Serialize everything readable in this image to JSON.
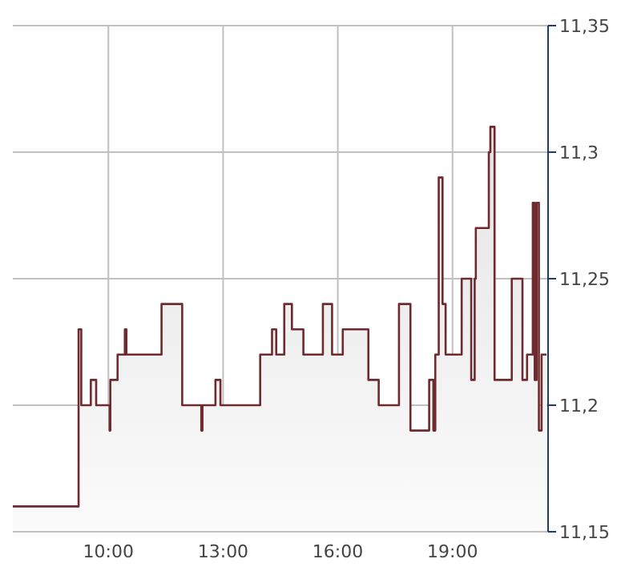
{
  "chart_data": {
    "type": "area",
    "color": "#6e2a2e",
    "x": [
      7.5,
      9.22,
      9.22,
      9.29,
      9.29,
      9.54,
      9.54,
      9.68,
      9.68,
      10.03,
      10.03,
      10.05,
      10.05,
      10.24,
      10.24,
      10.43,
      10.43,
      10.47,
      10.47,
      11.39,
      11.39,
      11.93,
      11.93,
      12.43,
      12.43,
      12.46,
      12.46,
      12.8,
      12.8,
      12.93,
      12.93,
      13.97,
      13.97,
      14.28,
      14.28,
      14.39,
      14.39,
      14.6,
      14.6,
      14.8,
      14.8,
      15.1,
      15.1,
      15.61,
      15.61,
      15.85,
      15.85,
      16.13,
      16.13,
      16.8,
      16.8,
      17.07,
      17.07,
      17.6,
      17.6,
      17.9,
      17.9,
      18.39,
      18.39,
      18.5,
      18.5,
      18.55,
      18.55,
      18.64,
      18.64,
      18.74,
      18.74,
      18.82,
      18.82,
      19.24,
      19.24,
      19.49,
      19.49,
      19.58,
      19.58,
      19.61,
      19.61,
      19.95,
      19.95,
      19.99,
      19.99,
      20.1,
      20.1,
      20.55,
      20.55,
      20.83,
      20.83,
      20.95,
      20.95,
      21.1,
      21.1,
      21.15,
      21.15,
      21.2,
      21.2,
      21.26,
      21.26,
      21.33,
      21.33,
      21.46
    ],
    "values": [
      11.16,
      11.16,
      11.23,
      11.23,
      11.2,
      11.2,
      11.21,
      11.21,
      11.2,
      11.2,
      11.19,
      11.19,
      11.21,
      11.21,
      11.22,
      11.22,
      11.23,
      11.23,
      11.22,
      11.22,
      11.24,
      11.24,
      11.2,
      11.2,
      11.19,
      11.19,
      11.2,
      11.2,
      11.21,
      11.21,
      11.2,
      11.2,
      11.22,
      11.22,
      11.23,
      11.23,
      11.22,
      11.22,
      11.24,
      11.24,
      11.23,
      11.23,
      11.22,
      11.22,
      11.24,
      11.24,
      11.22,
      11.22,
      11.23,
      11.23,
      11.21,
      11.21,
      11.2,
      11.2,
      11.24,
      11.24,
      11.19,
      11.19,
      11.21,
      11.21,
      11.19,
      11.19,
      11.22,
      11.22,
      11.29,
      11.29,
      11.24,
      11.24,
      11.22,
      11.22,
      11.25,
      11.25,
      11.21,
      11.21,
      11.25,
      11.25,
      11.27,
      11.27,
      11.3,
      11.3,
      11.31,
      11.31,
      11.21,
      11.21,
      11.25,
      11.25,
      11.21,
      11.21,
      11.22,
      11.22,
      11.28,
      11.28,
      11.21,
      11.21,
      11.28,
      11.28,
      11.19,
      11.19,
      11.22,
      11.22
    ],
    "xlim": [
      7.5,
      21.5
    ],
    "xticks": [
      {
        "value": 10,
        "label": "10:00"
      },
      {
        "value": 13,
        "label": "13:00"
      },
      {
        "value": 16,
        "label": "16:00"
      },
      {
        "value": 19,
        "label": "19:00"
      }
    ],
    "ylim": [
      11.15,
      11.35
    ],
    "yticks": [
      {
        "value": 11.15,
        "label": "11,15"
      },
      {
        "value": 11.2,
        "label": "11,2"
      },
      {
        "value": 11.25,
        "label": "11,25"
      },
      {
        "value": 11.3,
        "label": "11,3"
      },
      {
        "value": 11.35,
        "label": "11,35"
      }
    ],
    "grid": true
  }
}
